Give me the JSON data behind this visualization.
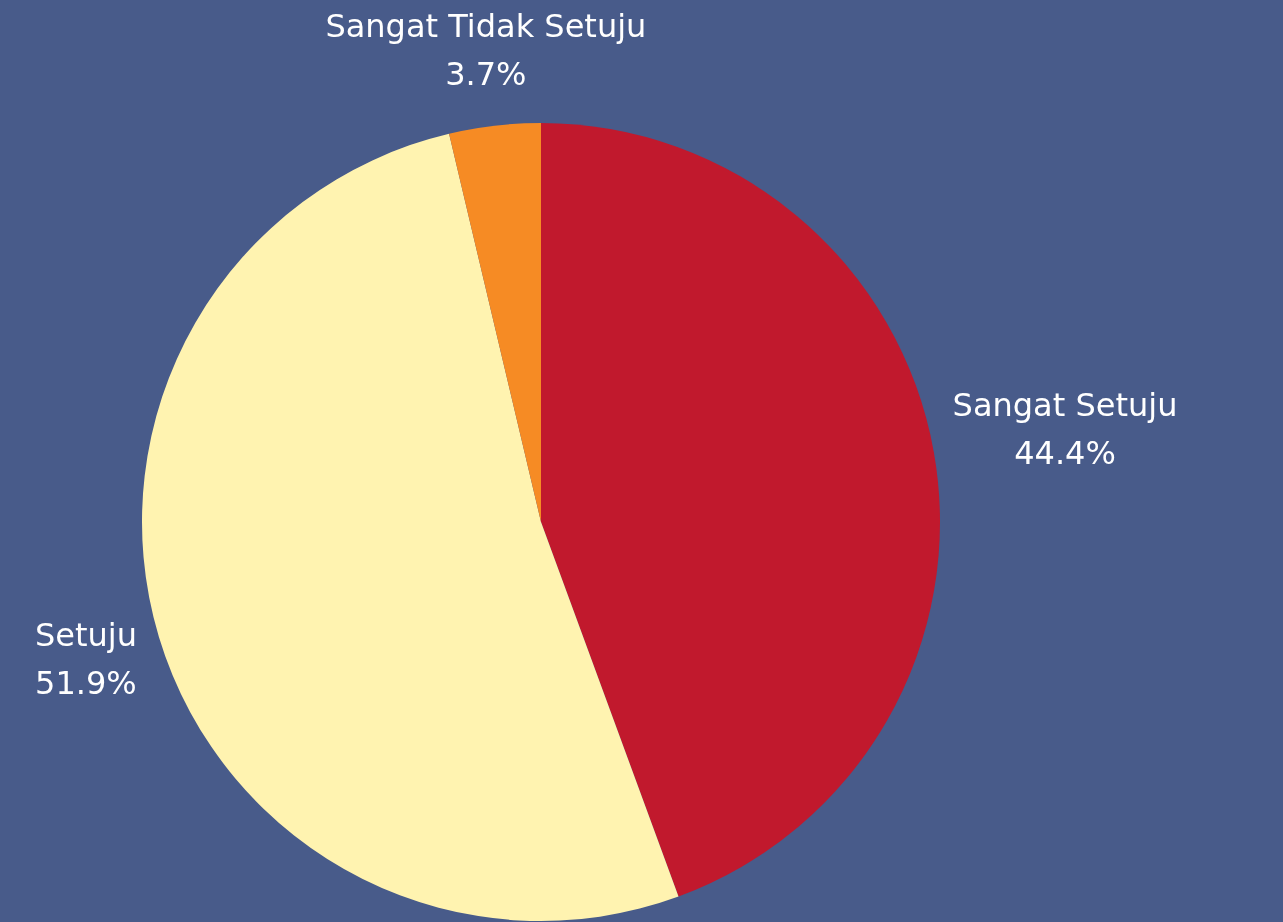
{
  "chart_data": {
    "type": "pie",
    "categories": [
      "Sangat Setuju",
      "Setuju",
      "Sangat Tidak Setuju"
    ],
    "values": [
      44.4,
      51.9,
      3.7
    ],
    "colors": [
      "#c1192d",
      "#fff3b0",
      "#f68b24"
    ],
    "value_labels": [
      "44.4%",
      "51.9%",
      "3.7%"
    ]
  }
}
